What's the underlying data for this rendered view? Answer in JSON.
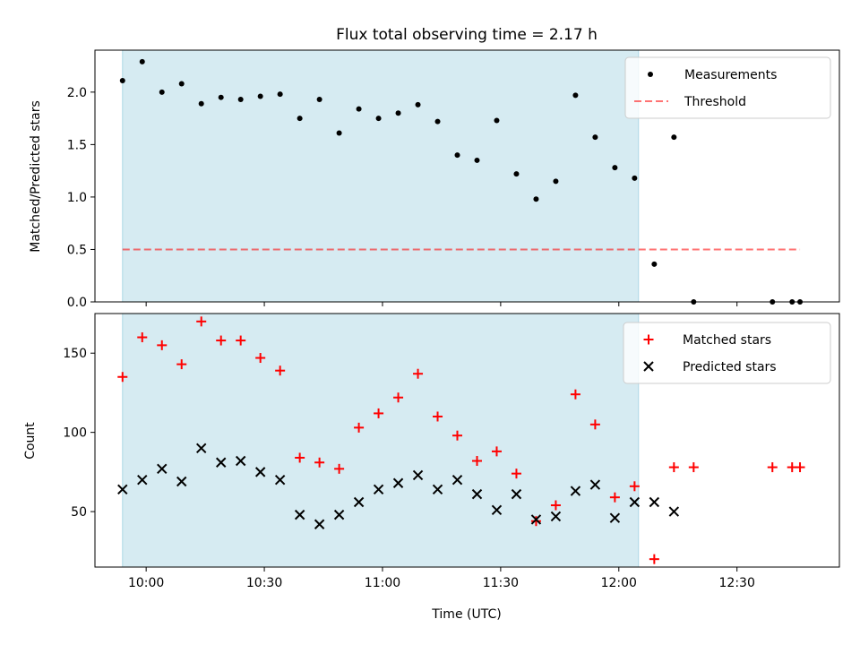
{
  "colors": {
    "shade": "#add8e6",
    "measure": "#000000",
    "threshold": "#ff0000",
    "matched": "#ff0000",
    "predicted": "#000000"
  },
  "chart_data": [
    {
      "type": "scatter",
      "title": "Flux total observing time = 2.17 h",
      "xlabel": "",
      "ylabel": "Matched/Predicted stars",
      "xlim": [
        "09:47",
        "12:56"
      ],
      "ylim": [
        0.0,
        2.4
      ],
      "yticks": [
        "0.0",
        "0.5",
        "1.0",
        "1.5",
        "2.0"
      ],
      "shaded_interval": [
        "09:54",
        "12:05"
      ],
      "legend_position": "upper right",
      "series": [
        {
          "name": "Measurements",
          "marker": "dot",
          "x": [
            "09:54",
            "09:59",
            "10:04",
            "10:09",
            "10:14",
            "10:19",
            "10:24",
            "10:29",
            "10:34",
            "10:39",
            "10:44",
            "10:49",
            "10:54",
            "10:59",
            "11:04",
            "11:09",
            "11:14",
            "11:19",
            "11:24",
            "11:29",
            "11:34",
            "11:39",
            "11:44",
            "11:49",
            "11:54",
            "11:59",
            "12:04",
            "12:09",
            "12:14",
            "12:19",
            "12:39",
            "12:44",
            "12:46"
          ],
          "y": [
            2.11,
            2.29,
            2.0,
            2.08,
            1.89,
            1.95,
            1.93,
            1.96,
            1.98,
            1.75,
            1.93,
            1.61,
            1.84,
            1.75,
            1.8,
            1.88,
            1.72,
            1.4,
            1.35,
            1.73,
            1.22,
            0.98,
            1.15,
            1.97,
            1.57,
            1.28,
            1.18,
            0.36,
            1.57,
            0.0,
            0.0,
            0.0,
            0.0
          ]
        },
        {
          "name": "Threshold",
          "style": "dashed",
          "x": [
            "09:54",
            "12:46"
          ],
          "y": [
            0.5,
            0.5
          ]
        }
      ]
    },
    {
      "type": "scatter",
      "title": "",
      "xlabel": "Time (UTC)",
      "ylabel": "Count",
      "xlim": [
        "09:47",
        "12:56"
      ],
      "ylim": [
        15,
        175
      ],
      "xticks": [
        "10:00",
        "10:30",
        "11:00",
        "11:30",
        "12:00",
        "12:30"
      ],
      "yticks": [
        "50",
        "100",
        "150"
      ],
      "shaded_interval": [
        "09:54",
        "12:05"
      ],
      "legend_position": "upper right",
      "series": [
        {
          "name": "Matched stars",
          "marker": "plus",
          "x": [
            "09:54",
            "09:59",
            "10:04",
            "10:09",
            "10:14",
            "10:19",
            "10:24",
            "10:29",
            "10:34",
            "10:39",
            "10:44",
            "10:49",
            "10:54",
            "10:59",
            "11:04",
            "11:09",
            "11:14",
            "11:19",
            "11:24",
            "11:29",
            "11:34",
            "11:39",
            "11:44",
            "11:49",
            "11:54",
            "11:59",
            "12:04",
            "12:09",
            "12:14",
            "12:19",
            "12:39",
            "12:44",
            "12:46"
          ],
          "y": [
            135,
            160,
            155,
            143,
            170,
            158,
            158,
            147,
            139,
            84,
            81,
            77,
            103,
            112,
            122,
            137,
            110,
            98,
            82,
            88,
            74,
            44,
            54,
            124,
            105,
            59,
            66,
            20,
            78,
            78,
            78,
            78,
            78
          ]
        },
        {
          "name": "Predicted stars",
          "marker": "x",
          "x": [
            "09:54",
            "09:59",
            "10:04",
            "10:09",
            "10:14",
            "10:19",
            "10:24",
            "10:29",
            "10:34",
            "10:39",
            "10:44",
            "10:49",
            "10:54",
            "10:59",
            "11:04",
            "11:09",
            "11:14",
            "11:19",
            "11:24",
            "11:29",
            "11:34",
            "11:39",
            "11:44",
            "11:49",
            "11:54",
            "11:59",
            "12:04",
            "12:09",
            "12:14"
          ],
          "y": [
            64,
            70,
            77,
            69,
            90,
            81,
            82,
            75,
            70,
            48,
            42,
            48,
            56,
            64,
            68,
            73,
            64,
            70,
            61,
            51,
            61,
            45,
            47,
            63,
            67,
            46,
            56,
            56,
            50
          ]
        }
      ]
    }
  ]
}
